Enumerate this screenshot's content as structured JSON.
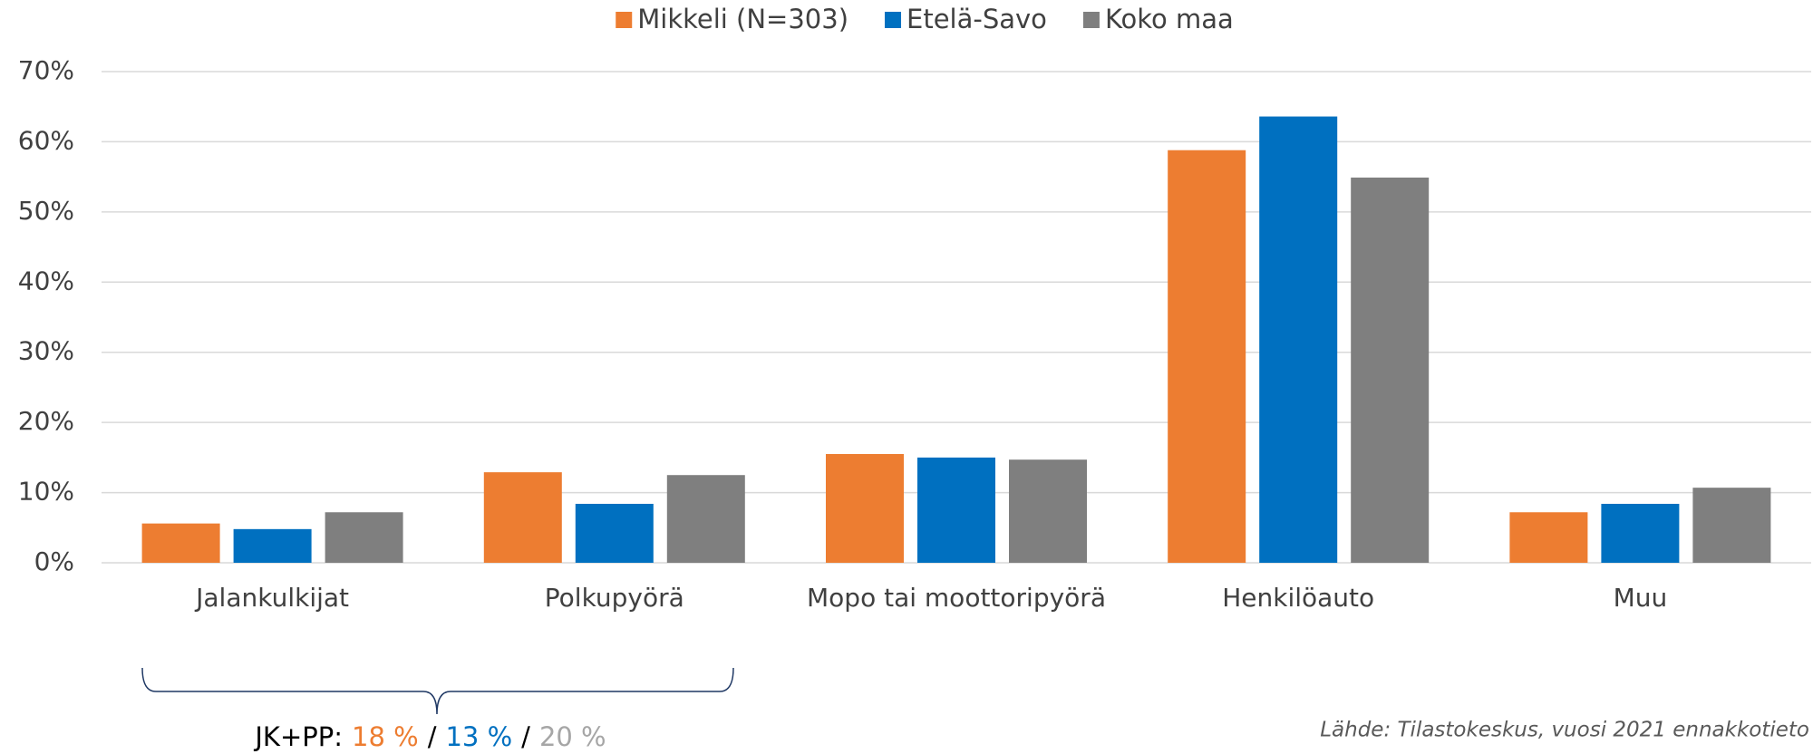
{
  "chart_data": {
    "type": "bar",
    "categories": [
      "Jalankulkijat",
      "Polkupyörä",
      "Mopo tai moottoripyörä",
      "Henkilöauto",
      "Muu"
    ],
    "series": [
      {
        "name": "Mikkeli (N=303)",
        "color": "#ED7D31",
        "values": [
          5.6,
          12.9,
          15.5,
          58.8,
          7.2
        ]
      },
      {
        "name": "Etelä-Savo",
        "color": "#0070C0",
        "values": [
          4.8,
          8.4,
          15.0,
          63.6,
          8.4
        ]
      },
      {
        "name": "Koko maa",
        "color": "#7F7F7F",
        "values": [
          7.2,
          12.5,
          14.7,
          54.9,
          10.7
        ]
      }
    ],
    "ylim": [
      0,
      70
    ],
    "yticks": [
      {
        "value": 0,
        "label": "0%"
      },
      {
        "value": 10,
        "label": "10%"
      },
      {
        "value": 20,
        "label": "20%"
      },
      {
        "value": 30,
        "label": "30%"
      },
      {
        "value": 40,
        "label": "40%"
      },
      {
        "value": 50,
        "label": "50%"
      },
      {
        "value": 60,
        "label": "60%"
      },
      {
        "value": 70,
        "label": "70%"
      }
    ],
    "grid": true,
    "legend": "top",
    "annotation": {
      "label": "JK+PP:",
      "parts": [
        "18 %",
        "13 %",
        "20 %"
      ],
      "separator": "/"
    },
    "source": "Lähde: Tilastokeskus, vuosi 2021 ennakkotieto"
  }
}
